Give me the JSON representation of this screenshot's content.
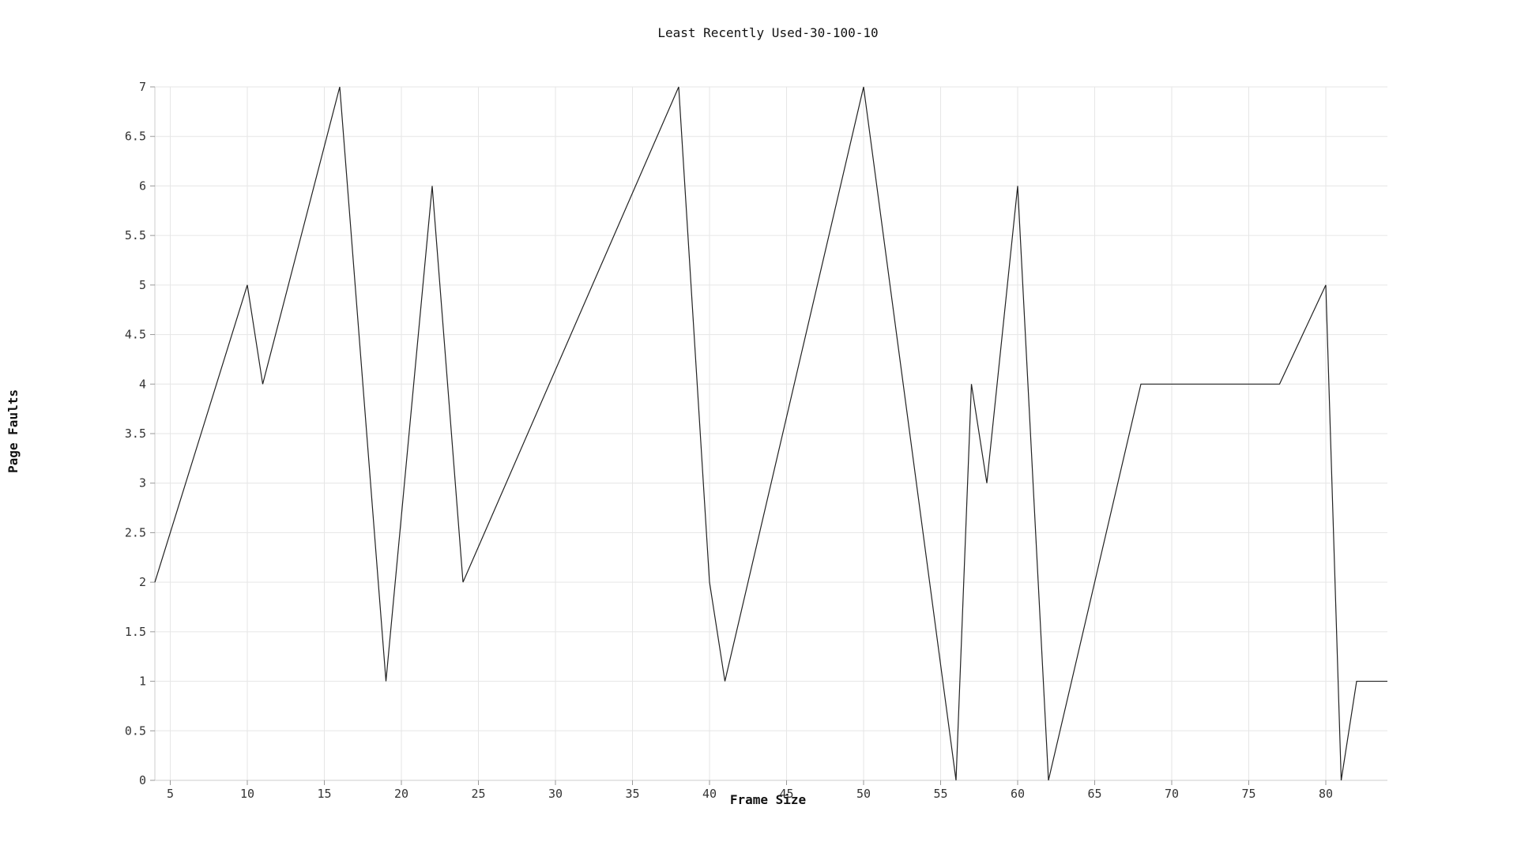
{
  "chart_data": {
    "type": "line",
    "title": "Least Recently Used-30-100-10",
    "xlabel": "Frame Size",
    "ylabel": "Page Faults",
    "xlim": [
      4,
      84
    ],
    "ylim": [
      0,
      7
    ],
    "x_ticks": [
      5,
      10,
      15,
      20,
      25,
      30,
      35,
      40,
      45,
      50,
      55,
      60,
      65,
      70,
      75,
      80
    ],
    "y_ticks": [
      0,
      0.5,
      1,
      1.5,
      2,
      2.5,
      3,
      3.5,
      4,
      4.5,
      5,
      5.5,
      6,
      6.5,
      7
    ],
    "grid": true,
    "series": [
      {
        "name": "Page Faults",
        "color": "#222222",
        "x": [
          4,
          10,
          11,
          16,
          19,
          22,
          24,
          38,
          40,
          41,
          50,
          56,
          57,
          58,
          60,
          62,
          68,
          77,
          80,
          81,
          82,
          84
        ],
        "values": [
          2,
          5,
          4,
          7,
          1,
          6,
          2,
          7,
          2,
          1,
          7,
          0,
          4,
          3,
          6,
          0,
          4,
          4,
          5,
          0,
          1,
          1
        ]
      }
    ]
  }
}
